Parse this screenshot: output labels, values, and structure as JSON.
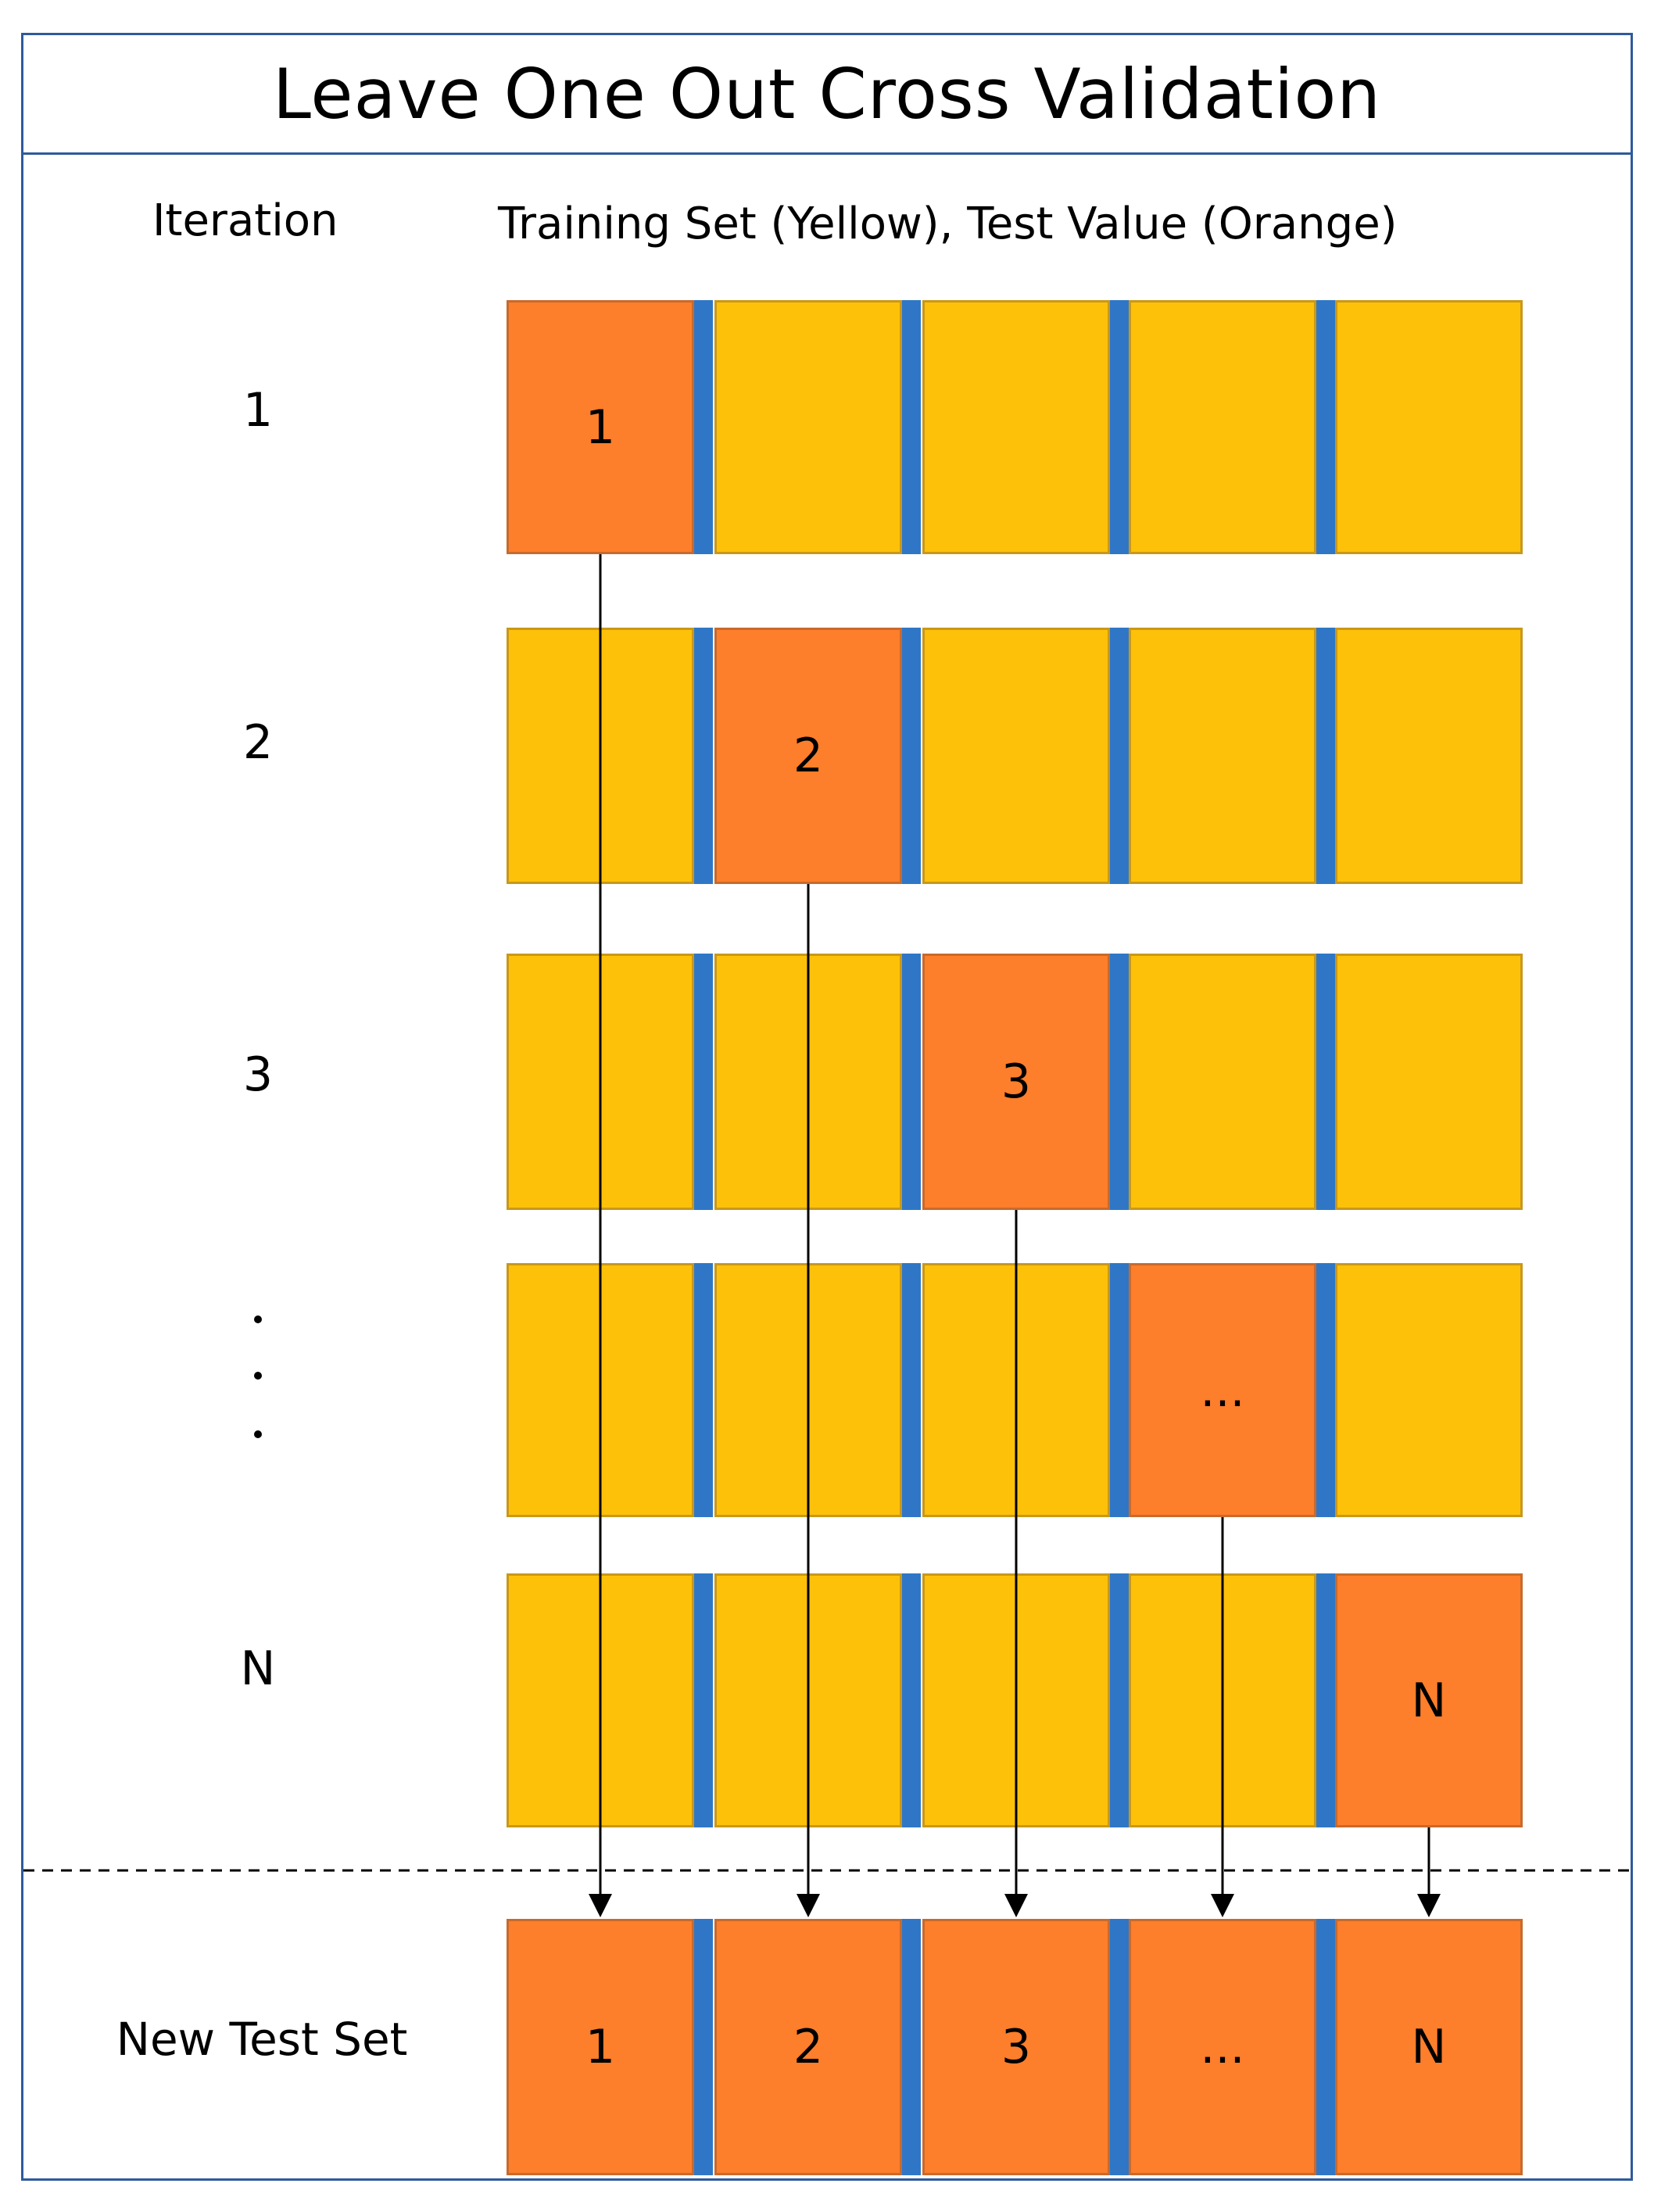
{
  "title": "Leave One Out Cross Validation",
  "headers": {
    "iteration": "Iteration",
    "sets": "Training Set (Yellow), Test Value (Orange)"
  },
  "colors": {
    "training": "#fdc10a",
    "test": "#fd7e2b",
    "separator": "#2f77c6",
    "frame": "#2e5a9c"
  },
  "rows": [
    {
      "label": "1",
      "test_index": 0,
      "test_label": "1"
    },
    {
      "label": "2",
      "test_index": 1,
      "test_label": "2"
    },
    {
      "label": "3",
      "test_index": 2,
      "test_label": "3"
    },
    {
      "label": "",
      "test_index": 3,
      "test_label": "..."
    },
    {
      "label": "N",
      "test_index": 4,
      "test_label": "N"
    }
  ],
  "new_test_set": {
    "label": "New Test Set",
    "cells": [
      "1",
      "2",
      "3",
      "...",
      "N"
    ]
  }
}
